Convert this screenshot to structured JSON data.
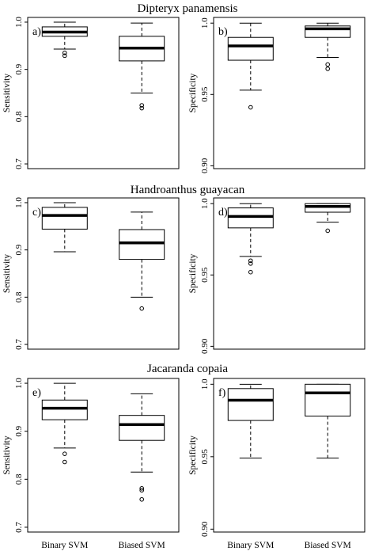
{
  "figure": {
    "row_titles": [
      "Dipteryx panamensis",
      "Handroanthus guayacan",
      "Jacaranda copaia"
    ]
  },
  "chart_data": [
    {
      "type": "boxplot",
      "panel": "a)",
      "row_title": "Dipteryx panamensis",
      "ylabel": "Sensitivity",
      "ylim": [
        0.69,
        1.01
      ],
      "yticks": [
        0.7,
        0.8,
        0.9,
        1.0
      ],
      "yticklabels": [
        "0.7",
        "0.8",
        "0.9",
        "1.0"
      ],
      "categories": [
        "Binary SVM",
        "Biased SVM"
      ],
      "show_categories": false,
      "boxes": [
        {
          "category": "Binary SVM",
          "whisker_low": 0.943,
          "q1": 0.97,
          "median": 0.979,
          "q3": 0.99,
          "whisker_high": 1.0,
          "outliers": [
            0.935,
            0.929
          ]
        },
        {
          "category": "Biased SVM",
          "whisker_low": 0.85,
          "q1": 0.918,
          "median": 0.945,
          "q3": 0.97,
          "whisker_high": 0.998,
          "outliers": [
            0.824,
            0.818
          ]
        }
      ]
    },
    {
      "type": "boxplot",
      "panel": "b)",
      "row_title": "Dipteryx panamensis",
      "ylabel": "Specificity",
      "ylim": [
        0.898,
        1.004
      ],
      "yticks": [
        0.9,
        0.95,
        1.0
      ],
      "yticklabels": [
        "0.90",
        "0.95",
        "1.0"
      ],
      "categories": [
        "Binary SVM",
        "Biased SVM"
      ],
      "show_categories": false,
      "boxes": [
        {
          "category": "Binary SVM",
          "whisker_low": 0.953,
          "q1": 0.974,
          "median": 0.984,
          "q3": 0.99,
          "whisker_high": 1.0,
          "outliers": [
            0.941
          ]
        },
        {
          "category": "Biased SVM",
          "whisker_low": 0.976,
          "q1": 0.99,
          "median": 0.996,
          "q3": 0.998,
          "whisker_high": 1.0,
          "outliers": [
            0.971,
            0.968
          ]
        }
      ]
    },
    {
      "type": "boxplot",
      "panel": "c)",
      "row_title": "Handroanthus guayacan",
      "ylabel": "Sensitivity",
      "ylim": [
        0.69,
        1.01
      ],
      "yticks": [
        0.7,
        0.8,
        0.9,
        1.0
      ],
      "yticklabels": [
        "0.7",
        "0.8",
        "0.9",
        "1.0"
      ],
      "categories": [
        "Binary SVM",
        "Biased SVM"
      ],
      "show_categories": false,
      "boxes": [
        {
          "category": "Binary SVM",
          "whisker_low": 0.896,
          "q1": 0.944,
          "median": 0.973,
          "q3": 0.99,
          "whisker_high": 1.0,
          "outliers": []
        },
        {
          "category": "Biased SVM",
          "whisker_low": 0.8,
          "q1": 0.88,
          "median": 0.915,
          "q3": 0.943,
          "whisker_high": 0.98,
          "outliers": [
            0.776
          ]
        }
      ]
    },
    {
      "type": "boxplot",
      "panel": "d)",
      "row_title": "Handroanthus guayacan",
      "ylabel": "Specificity",
      "ylim": [
        0.898,
        1.004
      ],
      "yticks": [
        0.9,
        0.95,
        1.0
      ],
      "yticklabels": [
        "0.90",
        "0.95",
        "1.0"
      ],
      "categories": [
        "Binary SVM",
        "Biased SVM"
      ],
      "show_categories": false,
      "boxes": [
        {
          "category": "Binary SVM",
          "whisker_low": 0.963,
          "q1": 0.983,
          "median": 0.991,
          "q3": 0.997,
          "whisker_high": 1.0,
          "outliers": [
            0.96,
            0.958,
            0.952
          ]
        },
        {
          "category": "Biased SVM",
          "whisker_low": 0.987,
          "q1": 0.994,
          "median": 0.998,
          "q3": 1.0,
          "whisker_high": 1.0,
          "outliers": [
            0.981
          ]
        }
      ]
    },
    {
      "type": "boxplot",
      "panel": "e)",
      "row_title": "Jacaranda copaia",
      "ylabel": "Sensitivity",
      "ylim": [
        0.69,
        1.01
      ],
      "yticks": [
        0.7,
        0.8,
        0.9,
        1.0
      ],
      "yticklabels": [
        "0.7",
        "0.8",
        "0.9",
        "1.0"
      ],
      "categories": [
        "Binary SVM",
        "Biased SVM"
      ],
      "show_categories": true,
      "boxes": [
        {
          "category": "Binary SVM",
          "whisker_low": 0.865,
          "q1": 0.924,
          "median": 0.948,
          "q3": 0.965,
          "whisker_high": 1.0,
          "outliers": [
            0.853,
            0.836
          ]
        },
        {
          "category": "Biased SVM",
          "whisker_low": 0.815,
          "q1": 0.881,
          "median": 0.914,
          "q3": 0.933,
          "whisker_high": 0.978,
          "outliers": [
            0.781,
            0.777,
            0.758
          ]
        }
      ]
    },
    {
      "type": "boxplot",
      "panel": "f)",
      "row_title": "Jacaranda copaia",
      "ylabel": "Specificity",
      "ylim": [
        0.898,
        1.004
      ],
      "yticks": [
        0.9,
        0.95,
        1.0
      ],
      "yticklabels": [
        "0.90",
        "0.95",
        "1.0"
      ],
      "categories": [
        "Binary SVM",
        "Biased SVM"
      ],
      "show_categories": true,
      "boxes": [
        {
          "category": "Binary SVM",
          "whisker_low": 0.949,
          "q1": 0.975,
          "median": 0.989,
          "q3": 0.997,
          "whisker_high": 1.0,
          "outliers": []
        },
        {
          "category": "Biased SVM",
          "whisker_low": 0.949,
          "q1": 0.978,
          "median": 0.994,
          "q3": 1.0,
          "whisker_high": 1.0,
          "outliers": []
        }
      ]
    }
  ]
}
